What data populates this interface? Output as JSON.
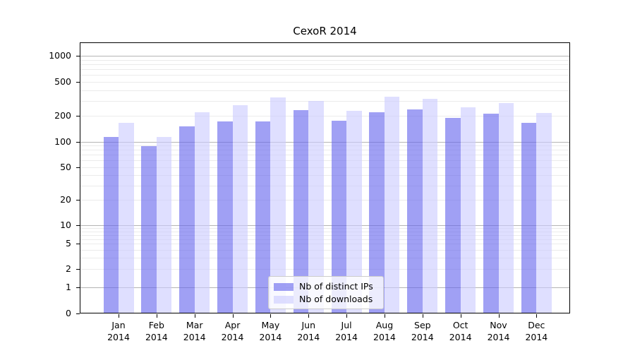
{
  "title": "CexoR 2014",
  "chart_data": {
    "type": "bar",
    "title": "CexoR 2014",
    "categories": [
      "Jan",
      "Feb",
      "Mar",
      "Apr",
      "May",
      "Jun",
      "Jul",
      "Aug",
      "Sep",
      "Oct",
      "Nov",
      "Dec"
    ],
    "year_label": "2014",
    "series": [
      {
        "name": "Nb of distinct IPs",
        "color": "#6666ee",
        "values": [
          115,
          89,
          151,
          172,
          173,
          235,
          176,
          221,
          240,
          191,
          212,
          168
        ]
      },
      {
        "name": "Nb of downloads",
        "color": "#ccccff",
        "values": [
          165,
          115,
          220,
          265,
          328,
          300,
          229,
          332,
          316,
          251,
          283,
          217
        ]
      }
    ],
    "bar_alpha": 0.62,
    "yscale": "symlog",
    "y_ticks": [
      0,
      1,
      2,
      5,
      10,
      20,
      50,
      100,
      200,
      500,
      1000
    ],
    "ylim": [
      0,
      1430
    ],
    "grid": true,
    "grid_minor_color": "#ebebeb",
    "grid_major_color": "#b4b4b4",
    "legend_position": "lower center"
  }
}
